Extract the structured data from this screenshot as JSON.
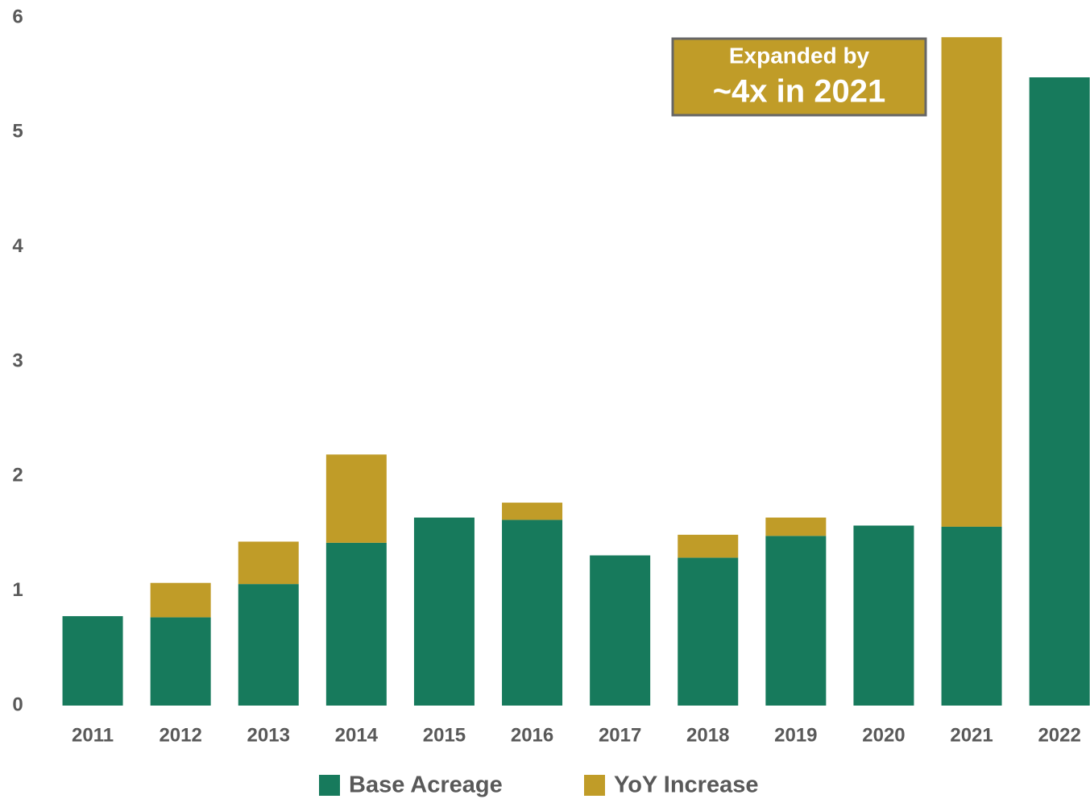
{
  "chart_data": {
    "type": "stacked_bar",
    "categories": [
      "2011",
      "2012",
      "2013",
      "2014",
      "2015",
      "2016",
      "2017",
      "2018",
      "2019",
      "2020",
      "2021",
      "2022"
    ],
    "series": [
      {
        "name": "Base Acreage",
        "color": "#177a5c",
        "values": [
          0.78,
          0.77,
          1.06,
          1.42,
          1.64,
          1.62,
          1.31,
          1.29,
          1.48,
          1.57,
          1.56,
          5.48
        ]
      },
      {
        "name": "YoY Increase",
        "color": "#c09c28",
        "values": [
          null,
          0.3,
          0.37,
          0.77,
          null,
          0.15,
          null,
          0.2,
          0.16,
          null,
          4.27,
          null
        ]
      }
    ],
    "ylim": [
      0,
      6
    ],
    "yticks": [
      0,
      1,
      2,
      3,
      4,
      5,
      6
    ],
    "annotation": {
      "lines": [
        "Expanded by",
        "~4x in 2021"
      ]
    }
  }
}
